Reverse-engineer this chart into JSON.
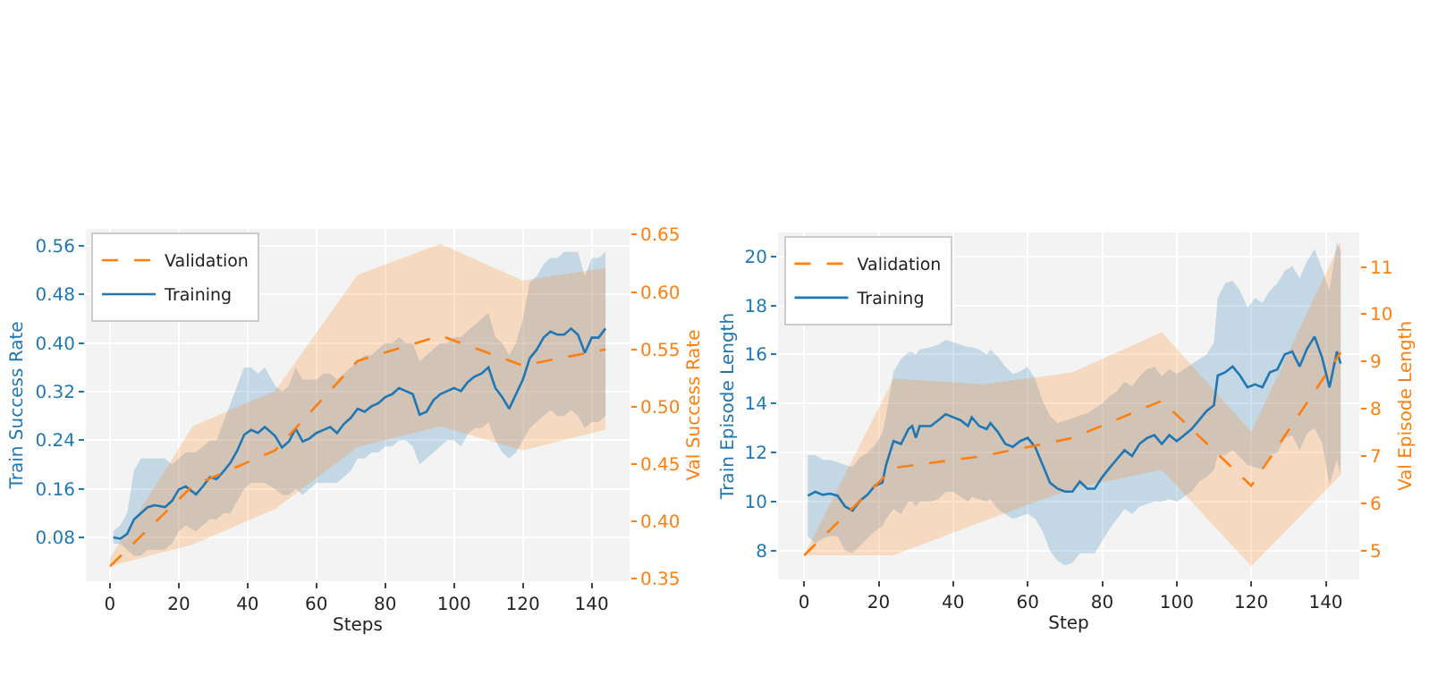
{
  "chart_data": [
    {
      "type": "line",
      "xlabel": "Steps",
      "ylabel": "Train Success Rate",
      "y2label": "Val Success Rate",
      "xlim": [
        -7,
        151
      ],
      "xticks": [
        0,
        20,
        40,
        60,
        80,
        100,
        120,
        140
      ],
      "ylim": [
        0.008,
        0.588
      ],
      "yticks": [
        0.08,
        0.16,
        0.24,
        0.32,
        {
          "value": 0.4,
          "label": "0.40"
        },
        0.48,
        0.56
      ],
      "y2lim": [
        0.348,
        0.655
      ],
      "y2ticks": [
        0.35,
        {
          "value": 0.4,
          "label": "0.40"
        },
        0.45,
        {
          "value": 0.5,
          "label": "0.50"
        },
        0.55,
        {
          "value": 0.6,
          "label": "0.60"
        },
        0.65
      ],
      "grid": true,
      "legend": "top left",
      "series": [
        {
          "name": "Training",
          "color": "#1f77b4",
          "line_style": "solid",
          "x": [
            1,
            3,
            5,
            7,
            9,
            11,
            13,
            16,
            18,
            20,
            22,
            25,
            27,
            29,
            31,
            33,
            35,
            37,
            39,
            41,
            43,
            45,
            48,
            50,
            52,
            54,
            56,
            58,
            60,
            62,
            64,
            66,
            68,
            70,
            72,
            74,
            76,
            78,
            80,
            82,
            84,
            86,
            88,
            90,
            92,
            94,
            96,
            98,
            100,
            102,
            104,
            106,
            108,
            110,
            112,
            114,
            116,
            118,
            120,
            122,
            124,
            126,
            128,
            130,
            132,
            134,
            136,
            138,
            140,
            142,
            144
          ],
          "values": [
            0.08,
            0.078,
            0.086,
            0.11,
            0.12,
            0.13,
            0.133,
            0.13,
            0.14,
            0.159,
            0.164,
            0.151,
            0.164,
            0.179,
            0.176,
            0.189,
            0.203,
            0.223,
            0.249,
            0.257,
            0.252,
            0.262,
            0.247,
            0.228,
            0.238,
            0.259,
            0.238,
            0.243,
            0.252,
            0.257,
            0.262,
            0.252,
            0.267,
            0.277,
            0.292,
            0.287,
            0.296,
            0.301,
            0.311,
            0.316,
            0.326,
            0.321,
            0.316,
            0.282,
            0.287,
            0.306,
            0.316,
            0.321,
            0.326,
            0.321,
            0.336,
            0.345,
            0.35,
            0.36,
            0.326,
            0.311,
            0.292,
            0.316,
            0.34,
            0.375,
            0.389,
            0.409,
            0.419,
            0.414,
            0.414,
            0.424,
            0.414,
            0.384,
            0.409,
            0.409,
            0.424
          ],
          "upper": [
            0.09,
            0.1,
            0.12,
            0.19,
            0.21,
            0.21,
            0.21,
            0.21,
            0.2,
            0.21,
            0.22,
            0.22,
            0.23,
            0.24,
            0.24,
            0.27,
            0.3,
            0.33,
            0.36,
            0.36,
            0.35,
            0.36,
            0.33,
            0.32,
            0.33,
            0.36,
            0.34,
            0.34,
            0.34,
            0.35,
            0.35,
            0.34,
            0.35,
            0.36,
            0.37,
            0.38,
            0.38,
            0.39,
            0.4,
            0.4,
            0.41,
            0.4,
            0.4,
            0.37,
            0.38,
            0.39,
            0.4,
            0.4,
            0.41,
            0.41,
            0.42,
            0.43,
            0.44,
            0.45,
            0.41,
            0.4,
            0.38,
            0.4,
            0.44,
            0.5,
            0.51,
            0.53,
            0.54,
            0.54,
            0.55,
            0.55,
            0.55,
            0.51,
            0.54,
            0.54,
            0.55
          ],
          "lower": [
            0.07,
            0.07,
            0.06,
            0.05,
            0.05,
            0.06,
            0.06,
            0.06,
            0.07,
            0.09,
            0.1,
            0.09,
            0.1,
            0.11,
            0.11,
            0.12,
            0.12,
            0.14,
            0.16,
            0.17,
            0.17,
            0.17,
            0.16,
            0.15,
            0.15,
            0.16,
            0.15,
            0.16,
            0.17,
            0.17,
            0.17,
            0.17,
            0.18,
            0.19,
            0.21,
            0.21,
            0.22,
            0.22,
            0.23,
            0.23,
            0.24,
            0.24,
            0.23,
            0.2,
            0.21,
            0.22,
            0.23,
            0.24,
            0.24,
            0.23,
            0.25,
            0.26,
            0.26,
            0.27,
            0.24,
            0.22,
            0.21,
            0.22,
            0.24,
            0.26,
            0.27,
            0.28,
            0.29,
            0.28,
            0.28,
            0.29,
            0.28,
            0.26,
            0.27,
            0.27,
            0.28
          ]
        },
        {
          "name": "Validation",
          "color": "#ff7f0e",
          "line_style": "dashed",
          "axis": "y2",
          "x": [
            0,
            24,
            48,
            72,
            96,
            120,
            144
          ],
          "values": [
            0.361,
            0.431,
            0.462,
            0.54,
            0.562,
            0.536,
            0.55
          ],
          "upper": [
            0.368,
            0.483,
            0.514,
            0.615,
            0.642,
            0.61,
            0.621
          ],
          "lower": [
            0.361,
            0.38,
            0.411,
            0.465,
            0.483,
            0.462,
            0.48
          ]
        }
      ]
    },
    {
      "type": "line",
      "xlabel": "Step",
      "ylabel": "Train Episode Length",
      "y2label": "Val Episode Length",
      "xlim": [
        -7,
        149
      ],
      "xticks": [
        0,
        20,
        40,
        60,
        80,
        100,
        120,
        140
      ],
      "ylim": [
        6.83,
        20.97
      ],
      "yticks": [
        8,
        10,
        12,
        14,
        16,
        18,
        20
      ],
      "y2lim": [
        4.39,
        11.73
      ],
      "y2ticks": [
        5,
        6,
        7,
        8,
        9,
        10,
        11
      ],
      "grid": true,
      "legend": "top left",
      "series": [
        {
          "name": "Training",
          "color": "#1f77b4",
          "line_style": "solid",
          "x": [
            1,
            3,
            5,
            7,
            9,
            11,
            13,
            15,
            17,
            19,
            21,
            22,
            24,
            26,
            28,
            29,
            30,
            31,
            34,
            36,
            38,
            40,
            42,
            44,
            45,
            47,
            49,
            50,
            52,
            54,
            56,
            58,
            60,
            62,
            64,
            66,
            68,
            70,
            72,
            74,
            76,
            78,
            80,
            82,
            84,
            86,
            88,
            90,
            92,
            94,
            96,
            98,
            100,
            102,
            104,
            106,
            108,
            110,
            111,
            113,
            115,
            117,
            119,
            121,
            123,
            125,
            127,
            129,
            131,
            133,
            135,
            137,
            139,
            141,
            143,
            144
          ],
          "values": [
            10.24,
            10.4,
            10.28,
            10.33,
            10.24,
            9.8,
            9.63,
            10.04,
            10.28,
            10.65,
            10.77,
            11.5,
            12.47,
            12.35,
            12.96,
            13.08,
            12.6,
            13.08,
            13.08,
            13.32,
            13.56,
            13.44,
            13.32,
            13.08,
            13.44,
            13.08,
            12.96,
            13.2,
            12.84,
            12.35,
            12.23,
            12.47,
            12.6,
            12.23,
            11.5,
            10.77,
            10.53,
            10.41,
            10.41,
            10.82,
            10.53,
            10.53,
            11.0,
            11.38,
            11.74,
            12.1,
            11.86,
            12.35,
            12.59,
            12.71,
            12.35,
            12.71,
            12.47,
            12.71,
            12.96,
            13.32,
            13.69,
            13.93,
            15.14,
            15.27,
            15.51,
            15.14,
            14.66,
            14.78,
            14.66,
            15.27,
            15.39,
            16.0,
            16.12,
            15.51,
            16.24,
            16.73,
            15.87,
            14.66,
            16.12,
            15.63
          ],
          "upper": [
            11.9,
            11.9,
            11.7,
            11.7,
            11.6,
            11.5,
            11.4,
            11.8,
            12.0,
            12.3,
            12.8,
            13.5,
            15.3,
            15.8,
            16.1,
            16.1,
            16.0,
            16.2,
            16.3,
            16.4,
            16.6,
            16.5,
            16.4,
            16.3,
            16.3,
            16.2,
            16.0,
            16.2,
            15.9,
            15.5,
            15.2,
            15.3,
            15.5,
            15.0,
            14.1,
            13.5,
            13.2,
            13.3,
            13.4,
            13.5,
            13.6,
            13.8,
            14.0,
            14.3,
            14.5,
            14.9,
            14.7,
            15.1,
            15.4,
            15.5,
            15.1,
            15.4,
            15.2,
            15.4,
            15.6,
            15.8,
            16.0,
            16.5,
            18.3,
            18.9,
            19.0,
            18.6,
            17.9,
            18.3,
            18.1,
            18.6,
            18.9,
            19.4,
            19.6,
            19.1,
            19.8,
            20.3,
            19.5,
            18.6,
            20.6,
            20.2
          ],
          "lower": [
            8.6,
            8.3,
            8.5,
            8.6,
            8.6,
            8.0,
            7.9,
            8.2,
            8.5,
            8.8,
            9.0,
            9.3,
            9.7,
            9.5,
            10.0,
            10.0,
            9.8,
            10.0,
            10.0,
            10.1,
            10.4,
            10.4,
            10.2,
            10.0,
            10.2,
            10.1,
            10.0,
            10.1,
            9.7,
            9.5,
            9.3,
            9.4,
            9.5,
            9.3,
            8.8,
            8.0,
            7.6,
            7.4,
            7.5,
            7.9,
            7.9,
            7.9,
            8.4,
            8.9,
            9.3,
            9.7,
            9.5,
            9.8,
            9.9,
            10.0,
            10.0,
            10.1,
            10.0,
            10.2,
            10.4,
            10.8,
            11.0,
            11.3,
            11.9,
            11.9,
            12.1,
            11.8,
            11.5,
            11.4,
            11.3,
            11.9,
            12.0,
            12.6,
            12.7,
            12.1,
            12.8,
            13.0,
            12.4,
            10.7,
            11.7,
            11.1
          ]
        },
        {
          "name": "Validation",
          "color": "#ff7f0e",
          "line_style": "dashed",
          "axis": "y2",
          "x": [
            0,
            24,
            48,
            72,
            96,
            120,
            144
          ],
          "values": [
            4.9,
            6.75,
            7.0,
            7.38,
            8.17,
            6.37,
            9.19
          ],
          "upper": [
            4.9,
            8.64,
            8.52,
            8.77,
            9.62,
            7.51,
            11.54
          ],
          "lower": [
            4.9,
            4.9,
            5.62,
            6.31,
            6.71,
            4.67,
            6.6
          ]
        }
      ]
    }
  ]
}
